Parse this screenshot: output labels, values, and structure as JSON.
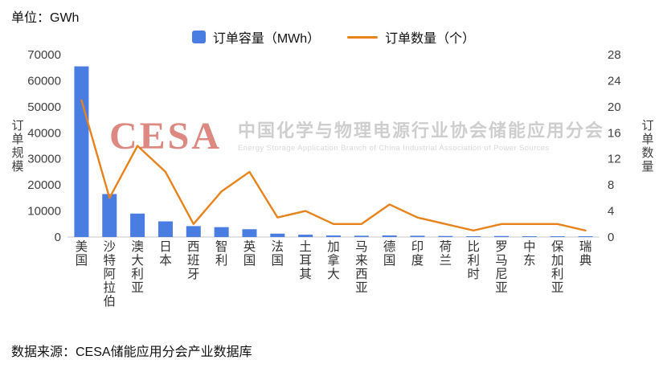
{
  "header": {
    "unit_label": "单位：GWh"
  },
  "legend": {
    "bar_label": "订单容量（MWh）",
    "line_label": "订单数量（个）"
  },
  "axes": {
    "left_title": "订单规模",
    "right_title": "订单数量"
  },
  "watermark": {
    "logo_text": "CESA",
    "cn_text": "中国化学与物理电源行业协会储能应用分会",
    "en_text": "Energy Storage Application Branch of China Industrial Association of Power Sources"
  },
  "footer": {
    "source_text": "数据来源：CESA储能应用分会产业数据库"
  },
  "colors": {
    "bar": "#4a7de1",
    "line": "#e8821c",
    "axis_text": "#404040",
    "category_text": "#333333",
    "baseline": "#c9c9c9",
    "watermark_red": "#c94034",
    "watermark_gray": "#c6c6c6"
  },
  "chart_data": {
    "type": "bar",
    "subtype": "combo dual-axis bar + line",
    "title": "",
    "unit": "单位：GWh",
    "categories": [
      "美国",
      "沙特阿拉伯",
      "澳大利亚",
      "日本",
      "西班牙",
      "智利",
      "英国",
      "法国",
      "土耳其",
      "加拿大",
      "马来西亚",
      "德国",
      "印度",
      "荷兰",
      "比利时",
      "罗马尼亚",
      "中东",
      "保加利亚",
      "瑞典"
    ],
    "series": [
      {
        "name": "订单容量（MWh）",
        "type": "bar",
        "axis": "left",
        "values": [
          65500,
          16500,
          9000,
          6000,
          4200,
          3800,
          3000,
          1300,
          900,
          600,
          500,
          600,
          500,
          400,
          300,
          400,
          300,
          300,
          300
        ]
      },
      {
        "name": "订单数量（个）",
        "type": "line",
        "axis": "right",
        "values": [
          21,
          6,
          14,
          10,
          2,
          7,
          10,
          3,
          4,
          2,
          2,
          5,
          3,
          2,
          1,
          2,
          2,
          2,
          1
        ]
      }
    ],
    "left_axis": {
      "label": "订单规模",
      "range": [
        0,
        70000
      ],
      "ticks": [
        0,
        10000,
        20000,
        30000,
        40000,
        50000,
        60000,
        70000
      ]
    },
    "right_axis": {
      "label": "订单数量",
      "range": [
        0,
        28
      ],
      "ticks": [
        0,
        4,
        8,
        12,
        16,
        20,
        24,
        28
      ]
    },
    "grid": false,
    "legend_position": "top-center",
    "source": "数据来源：CESA储能应用分会产业数据库"
  }
}
